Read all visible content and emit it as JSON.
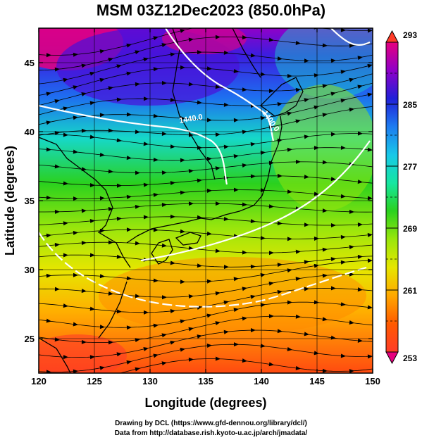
{
  "title": "MSM 03Z12Dec2023 (850.0hPa)",
  "chart_data": {
    "type": "heatmap",
    "xlabel": "Longitude (degrees)",
    "ylabel": "Latitude  (degrees)",
    "xlim": [
      120,
      150
    ],
    "ylim": [
      22.5,
      47.5
    ],
    "x_ticks": [
      "120",
      "125",
      "130",
      "135",
      "140",
      "145",
      "150"
    ],
    "y_ticks": [
      "25",
      "30",
      "35",
      "40",
      "45"
    ],
    "colorbar": {
      "min": 253,
      "max": 293,
      "tick_labels": [
        "293",
        "285",
        "277",
        "269",
        "261",
        "253"
      ],
      "colors": [
        "#e6007e",
        "#8f00c8",
        "#2020d8",
        "#1e7cf0",
        "#18c8e8",
        "#16e6a0",
        "#2ad11e",
        "#9ae60c",
        "#e6e600",
        "#ffa800",
        "#ff5a00",
        "#ff3c28"
      ]
    },
    "contour_labels": [
      "1440.0",
      "1400.0"
    ]
  },
  "credits": {
    "line1": "Drawing by DCL (https://www.gfd-dennou.org/library/dcl/)",
    "line2": "Data from http://database.rish.kyoto-u.ac.jp/arch/jmadata/"
  }
}
